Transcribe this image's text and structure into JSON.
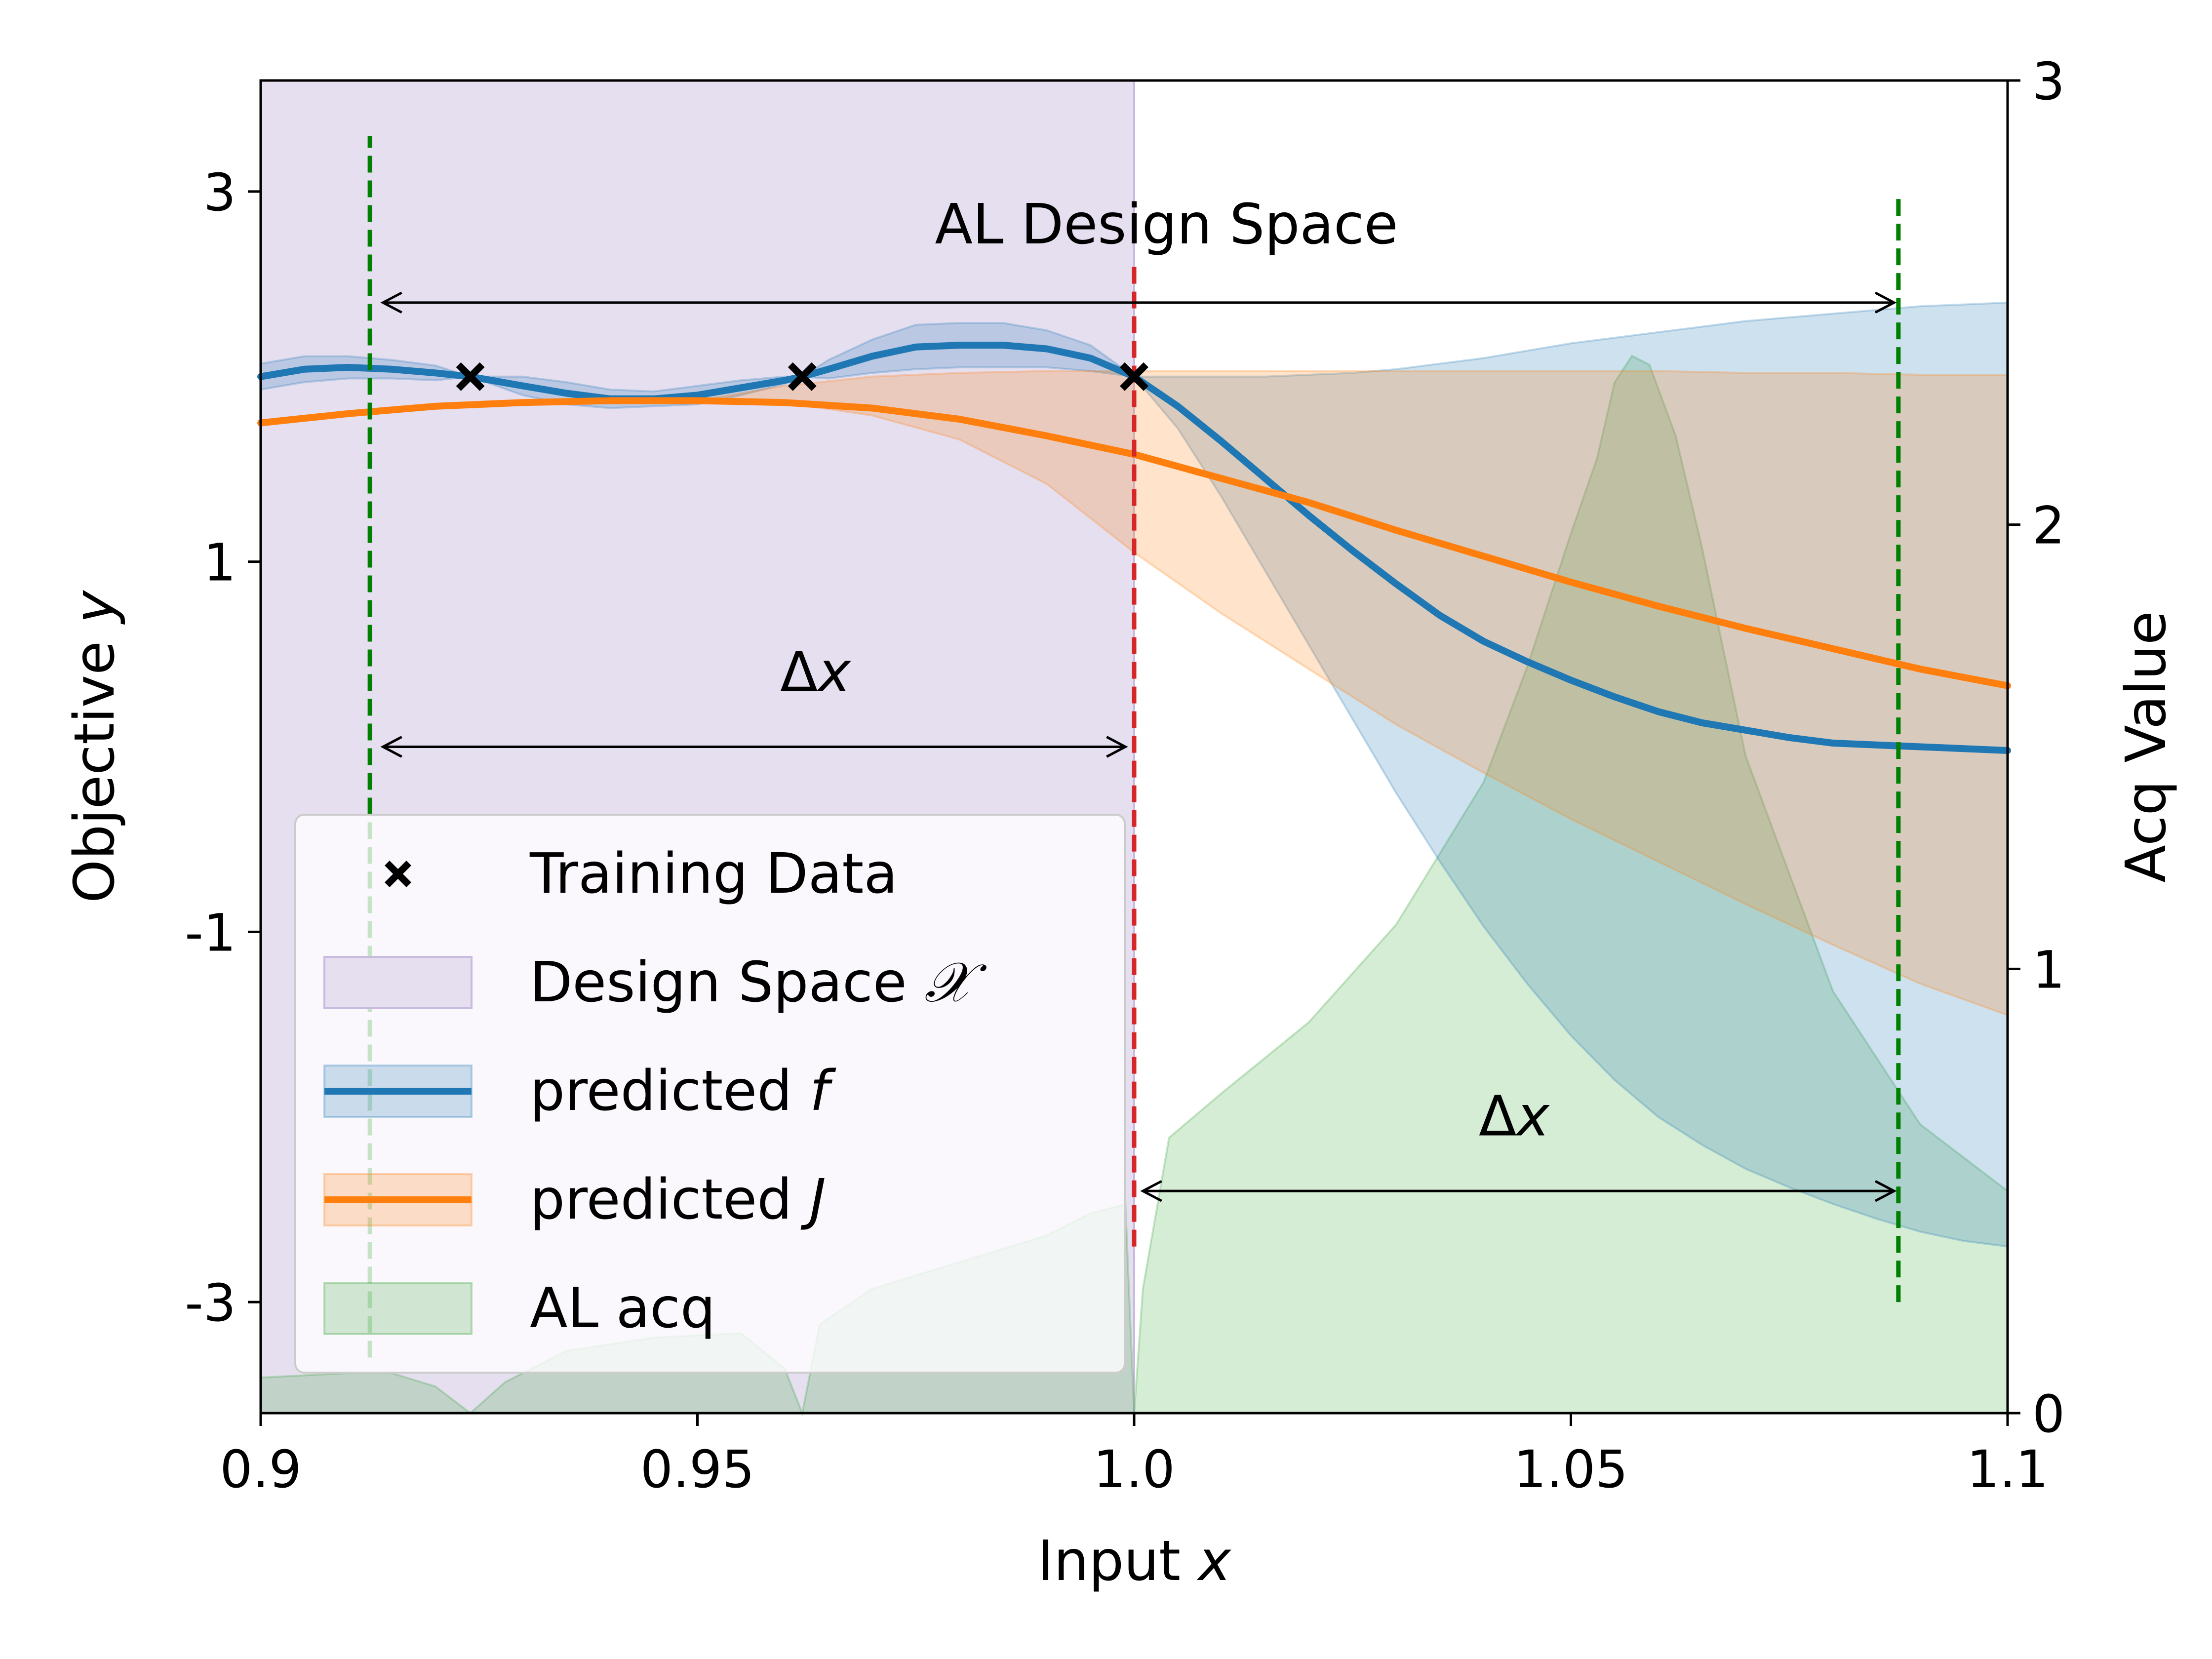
{
  "chart_data": {
    "type": "line",
    "xlabel": "Input",
    "xlabel_var": "x",
    "ylabel": "Objective",
    "ylabel_var": "y",
    "y2label": "Acq Value",
    "xlim": [
      0.9,
      1.1
    ],
    "ylim": [
      -3.6,
      3.6
    ],
    "y2lim": [
      0,
      3
    ],
    "xticks": [
      0.9,
      0.95,
      1.0,
      1.05,
      1.1
    ],
    "xtick_labels": [
      "0.9",
      "0.95",
      "1.0",
      "1.05",
      "1.1"
    ],
    "yticks": [
      3,
      1,
      -1,
      -3
    ],
    "ytick_labels": [
      "3",
      "1",
      "-1",
      "-3"
    ],
    "y2ticks": [
      0,
      1,
      2,
      3
    ],
    "y2tick_labels": [
      "0",
      "1",
      "2",
      "3"
    ],
    "grid": false,
    "legend_position": "lower-left",
    "design_space": {
      "name": "Design Space",
      "symbol": "𝒳",
      "x_range": [
        0.9,
        1.0
      ],
      "color": "#e6dff0"
    },
    "training_data": {
      "name": "Training Data",
      "marker": "x",
      "color": "#000000",
      "points": [
        {
          "x": 0.924,
          "y": 2.0
        },
        {
          "x": 0.962,
          "y": 2.0
        },
        {
          "x": 1.0,
          "y": 2.0
        }
      ]
    },
    "series": [
      {
        "name": "predicted",
        "var": "f",
        "color": "#1f77b4",
        "band_color": "#a6c8e0",
        "x": [
          0.9,
          0.905,
          0.91,
          0.915,
          0.92,
          0.924,
          0.93,
          0.935,
          0.94,
          0.945,
          0.95,
          0.955,
          0.96,
          0.962,
          0.965,
          0.97,
          0.975,
          0.98,
          0.985,
          0.99,
          0.995,
          1.0,
          1.005,
          1.01,
          1.015,
          1.02,
          1.025,
          1.03,
          1.035,
          1.04,
          1.045,
          1.05,
          1.055,
          1.06,
          1.065,
          1.07,
          1.075,
          1.08,
          1.085,
          1.09,
          1.095,
          1.1
        ],
        "y": [
          2.0,
          2.04,
          2.05,
          2.04,
          2.02,
          2.0,
          1.95,
          1.91,
          1.88,
          1.88,
          1.9,
          1.94,
          1.98,
          2.0,
          2.04,
          2.11,
          2.16,
          2.17,
          2.17,
          2.15,
          2.1,
          2.0,
          1.84,
          1.65,
          1.45,
          1.25,
          1.06,
          0.88,
          0.71,
          0.57,
          0.46,
          0.36,
          0.27,
          0.19,
          0.13,
          0.09,
          0.05,
          0.02,
          0.01,
          0.0,
          -0.01,
          -0.02
        ],
        "lower": [
          1.93,
          1.97,
          1.99,
          1.99,
          1.98,
          2.0,
          1.9,
          1.85,
          1.83,
          1.84,
          1.85,
          1.9,
          1.96,
          2.0,
          1.99,
          2.02,
          2.04,
          2.05,
          2.05,
          2.05,
          2.03,
          2.0,
          1.72,
          1.35,
          0.95,
          0.55,
          0.15,
          -0.25,
          -0.62,
          -0.97,
          -1.28,
          -1.56,
          -1.8,
          -2.0,
          -2.15,
          -2.28,
          -2.38,
          -2.47,
          -2.55,
          -2.62,
          -2.67,
          -2.7
        ],
        "upper": [
          2.07,
          2.11,
          2.11,
          2.09,
          2.06,
          2.0,
          2.0,
          1.97,
          1.93,
          1.92,
          1.95,
          1.98,
          2.0,
          2.0,
          2.09,
          2.2,
          2.28,
          2.29,
          2.29,
          2.25,
          2.17,
          2.0,
          2.0,
          2.0,
          2.0,
          2.01,
          2.02,
          2.04,
          2.07,
          2.1,
          2.14,
          2.18,
          2.21,
          2.24,
          2.27,
          2.3,
          2.32,
          2.34,
          2.36,
          2.38,
          2.39,
          2.4
        ]
      },
      {
        "name": "predicted",
        "var": "J",
        "color": "#ff7f0e",
        "band_color": "#fdd0a2",
        "x": [
          0.9,
          0.91,
          0.92,
          0.93,
          0.94,
          0.95,
          0.96,
          0.97,
          0.98,
          0.99,
          1.0,
          1.01,
          1.02,
          1.03,
          1.04,
          1.05,
          1.06,
          1.07,
          1.08,
          1.09,
          1.1
        ],
        "y": [
          1.75,
          1.8,
          1.84,
          1.86,
          1.87,
          1.87,
          1.86,
          1.83,
          1.77,
          1.68,
          1.58,
          1.45,
          1.32,
          1.17,
          1.03,
          0.89,
          0.76,
          0.64,
          0.53,
          0.42,
          0.33
        ],
        "lower": [
          1.75,
          1.8,
          1.84,
          1.86,
          1.87,
          1.87,
          1.86,
          1.79,
          1.66,
          1.42,
          1.05,
          0.72,
          0.42,
          0.12,
          -0.14,
          -0.39,
          -0.62,
          -0.85,
          -1.07,
          -1.28,
          -1.45
        ],
        "upper": [
          1.75,
          1.8,
          1.84,
          1.86,
          1.87,
          1.87,
          1.95,
          2.0,
          2.02,
          2.03,
          2.03,
          2.03,
          2.03,
          2.03,
          2.03,
          2.03,
          2.03,
          2.02,
          2.02,
          2.01,
          2.01
        ]
      }
    ],
    "acquisition": {
      "name": "AL acq",
      "color": "#d3ead3",
      "x": [
        0.9,
        0.91,
        0.915,
        0.92,
        0.924,
        0.928,
        0.935,
        0.945,
        0.955,
        0.96,
        0.962,
        0.964,
        0.97,
        0.98,
        0.99,
        0.995,
        0.999,
        1.0,
        1.001,
        1.004,
        1.01,
        1.02,
        1.03,
        1.04,
        1.045,
        1.05,
        1.053,
        1.055,
        1.057,
        1.059,
        1.062,
        1.065,
        1.07,
        1.08,
        1.09,
        1.1
      ],
      "acq": [
        0.08,
        0.09,
        0.09,
        0.06,
        0.0,
        0.07,
        0.14,
        0.17,
        0.18,
        0.1,
        0.0,
        0.2,
        0.28,
        0.34,
        0.4,
        0.45,
        0.47,
        0.0,
        0.28,
        0.62,
        0.72,
        0.88,
        1.1,
        1.42,
        1.68,
        1.98,
        2.15,
        2.32,
        2.38,
        2.36,
        2.2,
        1.95,
        1.48,
        0.95,
        0.65,
        0.5
      ]
    },
    "vertical_lines": [
      {
        "x": 0.9125,
        "color": "#008000",
        "style": "dashed",
        "y_from": -3.3,
        "y_to": 3.3
      },
      {
        "x": 1.0,
        "color": "#d62728",
        "style": "dashed",
        "y_from": -2.7,
        "y_to": 2.6
      },
      {
        "x": 1.0875,
        "color": "#008000",
        "style": "dashed",
        "y_from": -3.0,
        "y_to": 3.0
      }
    ],
    "annotations": [
      {
        "text": "AL Design Space",
        "x": 1.0037,
        "y": 2.72,
        "arrow_from": 0.914,
        "arrow_to": 1.087,
        "arrow_y": 2.4
      },
      {
        "text": "Δ",
        "var": "x",
        "x": 0.9635,
        "y": 0.3,
        "arrow_from": 0.914,
        "arrow_to": 0.999,
        "arrow_y": 0.0
      },
      {
        "text": "Δ",
        "var": "x",
        "x": 1.0435,
        "y": -2.1,
        "arrow_from": 1.001,
        "arrow_to": 1.087,
        "arrow_y": -2.4
      }
    ],
    "legend": [
      {
        "label": "Training Data",
        "kind": "marker"
      },
      {
        "label": "Design Space",
        "symbol": "𝒳",
        "kind": "patch-purple"
      },
      {
        "label": "predicted",
        "var": "f",
        "kind": "line-blue"
      },
      {
        "label": "predicted",
        "var": "J",
        "kind": "line-orange"
      },
      {
        "label": "AL acq",
        "kind": "patch-green"
      }
    ]
  }
}
